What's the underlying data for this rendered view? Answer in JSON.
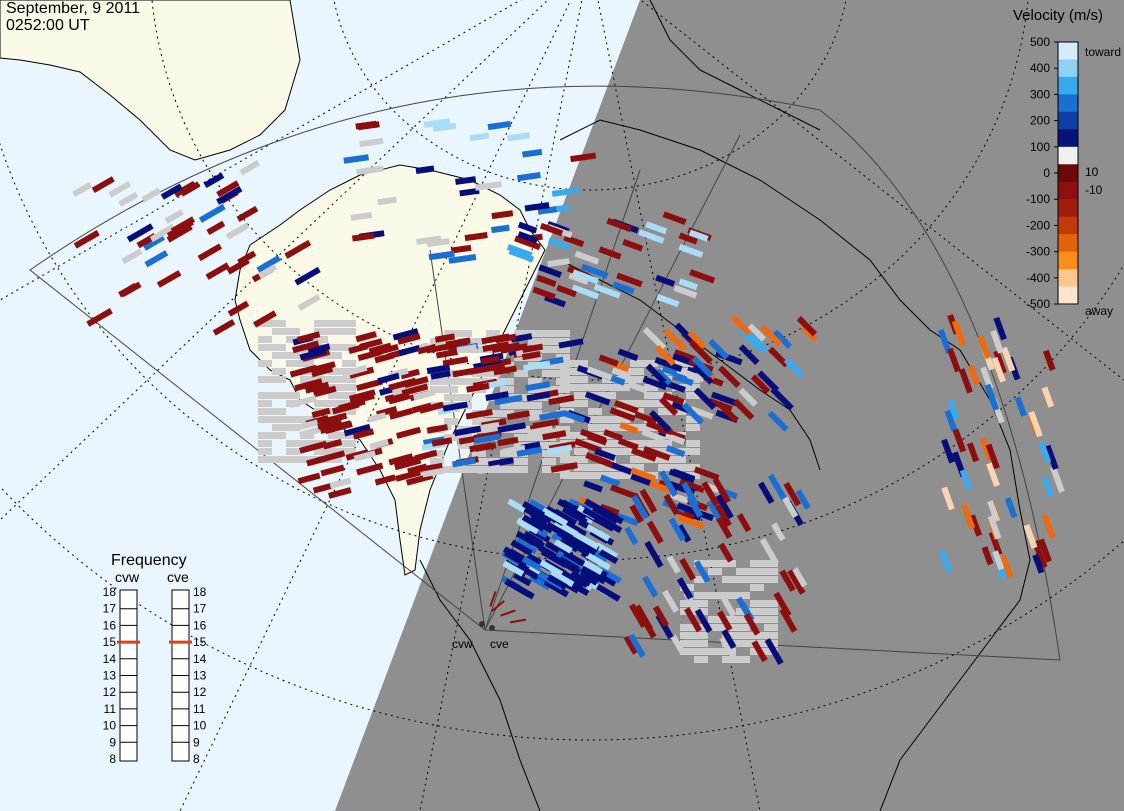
{
  "header": {
    "date": "September, 9 2011",
    "time": "0252:00 UT"
  },
  "colors": {
    "ocean": "#eaf6fd",
    "land": "#fbfae8",
    "night": "#8f8f8f",
    "ground_scatter": "#cccccc",
    "coast": "#000000"
  },
  "legend": {
    "title": "Velocity (m/s)",
    "ticks": [
      "500",
      "400",
      "300",
      "200",
      "100",
      "0",
      "-100",
      "-200",
      "-300",
      "-400",
      "-500"
    ],
    "inner_labels": [
      "10",
      "-10"
    ],
    "toward_label": "toward",
    "away_label": "away"
  },
  "frequency": {
    "title": "Frequency",
    "radars": [
      {
        "code": "cvw",
        "value": 15
      },
      {
        "code": "cve",
        "value": 15
      }
    ],
    "ticks": [
      "18",
      "17",
      "16",
      "15",
      "14",
      "13",
      "12",
      "11",
      "10",
      "9",
      "8"
    ]
  },
  "sites": {
    "west": "cvw",
    "east": "cve"
  }
}
